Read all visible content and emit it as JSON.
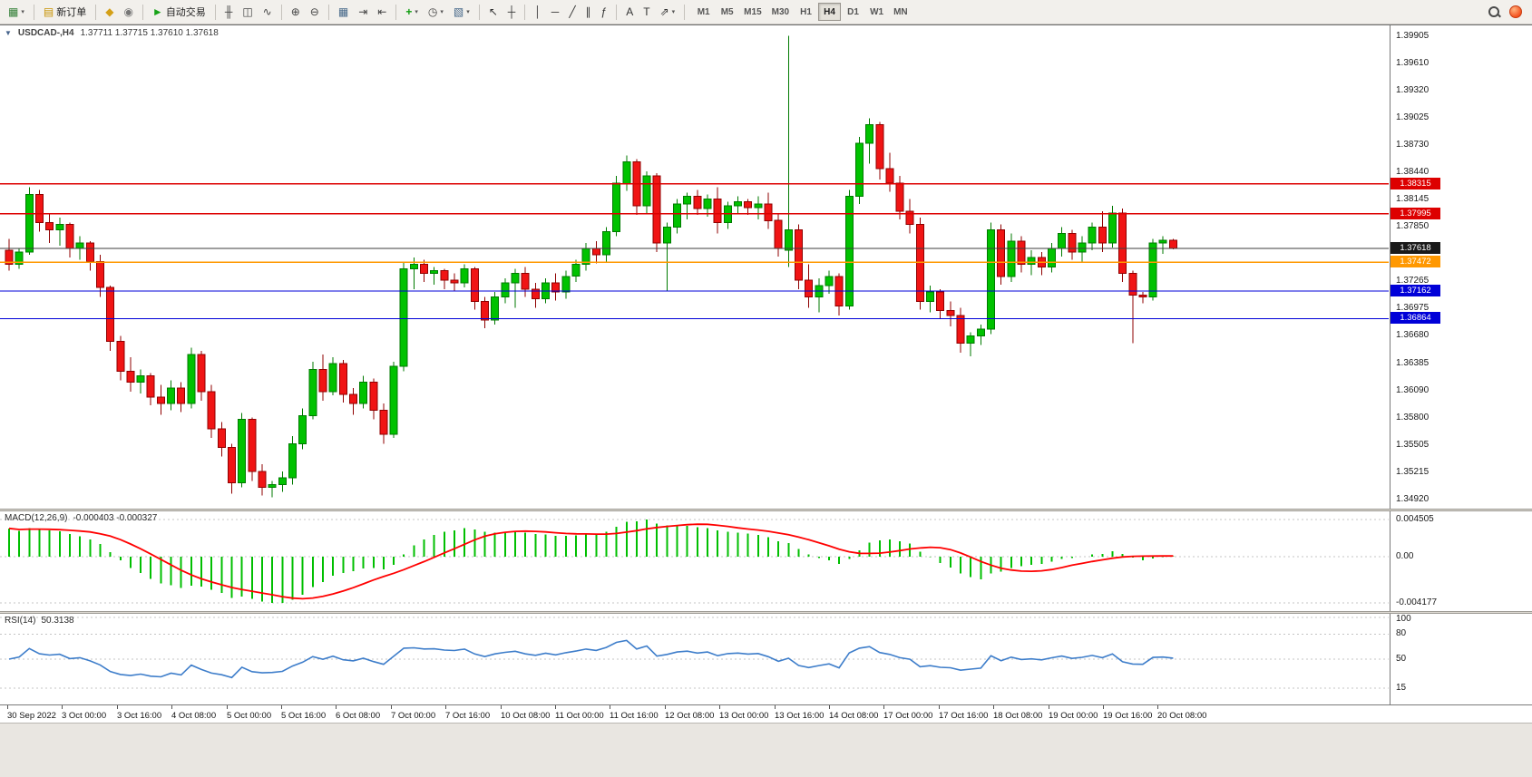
{
  "toolbar": {
    "items": [
      {
        "name": "new-chart",
        "glyph": "▦",
        "color": "#2f7d33",
        "caret": true
      },
      {
        "sep": true
      },
      {
        "name": "new-order",
        "label": "新订单",
        "glyph": "▤",
        "color": "#c79100"
      },
      {
        "sep": true
      },
      {
        "name": "metaeditor",
        "glyph": "◆",
        "color": "#d4a017"
      },
      {
        "name": "community",
        "glyph": "◉",
        "color": "#777777"
      },
      {
        "sep": true
      },
      {
        "name": "autotrading",
        "label": "自动交易",
        "glyph": "►",
        "color": "#17a317"
      },
      {
        "sep": true
      },
      {
        "name": "bars-chart",
        "glyph": "╫",
        "color": "#444444"
      },
      {
        "name": "candles-chart",
        "glyph": "◫",
        "color": "#444444"
      },
      {
        "name": "line-chart",
        "glyph": "∿",
        "color": "#444444"
      },
      {
        "sep": true
      },
      {
        "name": "zoom-in",
        "glyph": "⊕",
        "color": "#444444"
      },
      {
        "name": "zoom-out",
        "glyph": "⊖",
        "color": "#444444"
      },
      {
        "sep": true
      },
      {
        "name": "tile-windows",
        "glyph": "▦",
        "color": "#446688"
      },
      {
        "name": "auto-scroll",
        "glyph": "⇥",
        "color": "#444444"
      },
      {
        "name": "chart-shift",
        "glyph": "⇤",
        "color": "#444444"
      },
      {
        "sep": true
      },
      {
        "name": "indicators",
        "glyph": "+",
        "color": "#0f9d0f",
        "bold": true,
        "caret": true
      },
      {
        "name": "periods",
        "glyph": "◷",
        "color": "#444444",
        "caret": true
      },
      {
        "name": "templates",
        "glyph": "▧",
        "color": "#446688",
        "caret": true
      },
      {
        "sep": true
      },
      {
        "name": "cursor",
        "glyph": "↖",
        "color": "#333333"
      },
      {
        "name": "crosshair",
        "glyph": "┼",
        "color": "#333333"
      },
      {
        "sep": true
      },
      {
        "name": "vertical-line",
        "glyph": "│",
        "color": "#333333"
      },
      {
        "name": "horizontal-line",
        "glyph": "─",
        "color": "#333333"
      },
      {
        "name": "trendline",
        "glyph": "╱",
        "color": "#333333"
      },
      {
        "name": "equidistant-channel",
        "glyph": "∥",
        "color": "#333333"
      },
      {
        "name": "fibonacci",
        "glyph": "ƒ",
        "color": "#333333"
      },
      {
        "sep": true
      },
      {
        "name": "text",
        "glyph": "A",
        "color": "#333333"
      },
      {
        "name": "text-label",
        "glyph": "T",
        "color": "#333333"
      },
      {
        "name": "arrows",
        "glyph": "⇗",
        "color": "#333333",
        "caret": true
      },
      {
        "sep": true
      }
    ],
    "timeframes": [
      "M1",
      "M5",
      "M15",
      "M30",
      "H1",
      "H4",
      "D1",
      "W1",
      "MN"
    ],
    "active_timeframe": "H4"
  },
  "chart": {
    "symbol": "USDCAD-,H4",
    "ohlc": "1.37711 1.37715 1.37610 1.37618",
    "macd_title": "MACD(12,26,9)",
    "macd_values": "-0.000403 -0.000327",
    "rsi_title": "RSI(14)",
    "rsi_value": "50.3138"
  },
  "colors": {
    "bull": "#00c200",
    "bull_border": "#007a00",
    "bear": "#f01414",
    "bear_border": "#8f0000",
    "macd_hist": "#00bf00",
    "macd_signal": "#ff0000",
    "rsi_line": "#3d7dca",
    "grid": "#c4c4c4"
  },
  "chart_data": {
    "type": "candlestick",
    "symbol": "USDCAD-",
    "timeframe": "H4",
    "price_max": 1.4002,
    "price_min": 1.3482,
    "candles": [
      [
        1.376,
        1.3772,
        1.3738,
        1.3745
      ],
      [
        1.3745,
        1.3762,
        1.374,
        1.3758
      ],
      [
        1.3758,
        1.3828,
        1.3755,
        1.382
      ],
      [
        1.382,
        1.3825,
        1.378,
        1.379
      ],
      [
        1.379,
        1.38,
        1.3768,
        1.3782
      ],
      [
        1.3782,
        1.3795,
        1.3765,
        1.3788
      ],
      [
        1.3788,
        1.379,
        1.3752,
        1.3762
      ],
      [
        1.3762,
        1.3775,
        1.375,
        1.3768
      ],
      [
        1.3768,
        1.377,
        1.3738,
        1.3748
      ],
      [
        1.3748,
        1.3755,
        1.371,
        1.372
      ],
      [
        1.372,
        1.3722,
        1.3652,
        1.3662
      ],
      [
        1.3662,
        1.3668,
        1.362,
        1.363
      ],
      [
        1.363,
        1.3645,
        1.3608,
        1.3618
      ],
      [
        1.3618,
        1.3632,
        1.3606,
        1.3625
      ],
      [
        1.3625,
        1.3628,
        1.3593,
        1.3602
      ],
      [
        1.3602,
        1.3615,
        1.3583,
        1.3595
      ],
      [
        1.3595,
        1.362,
        1.3588,
        1.3612
      ],
      [
        1.3612,
        1.3618,
        1.3586,
        1.3595
      ],
      [
        1.3595,
        1.3655,
        1.359,
        1.3648
      ],
      [
        1.3648,
        1.3652,
        1.3598,
        1.3608
      ],
      [
        1.3608,
        1.3615,
        1.3558,
        1.3568
      ],
      [
        1.3568,
        1.3575,
        1.3538,
        1.3548
      ],
      [
        1.3548,
        1.3552,
        1.3498,
        1.351
      ],
      [
        1.351,
        1.3585,
        1.3505,
        1.3578
      ],
      [
        1.3578,
        1.358,
        1.3512,
        1.3522
      ],
      [
        1.3522,
        1.353,
        1.3496,
        1.3505
      ],
      [
        1.3505,
        1.3512,
        1.3494,
        1.3508
      ],
      [
        1.3508,
        1.3522,
        1.35,
        1.3515
      ],
      [
        1.3515,
        1.356,
        1.3508,
        1.3552
      ],
      [
        1.3552,
        1.359,
        1.3546,
        1.3582
      ],
      [
        1.3582,
        1.364,
        1.3578,
        1.3632
      ],
      [
        1.3632,
        1.3648,
        1.3598,
        1.3608
      ],
      [
        1.3608,
        1.3645,
        1.3604,
        1.3638
      ],
      [
        1.3638,
        1.3642,
        1.3596,
        1.3605
      ],
      [
        1.3605,
        1.3612,
        1.3583,
        1.3595
      ],
      [
        1.3595,
        1.3625,
        1.359,
        1.3618
      ],
      [
        1.3618,
        1.3622,
        1.3578,
        1.3588
      ],
      [
        1.3588,
        1.3595,
        1.3552,
        1.3562
      ],
      [
        1.3562,
        1.364,
        1.3558,
        1.3635
      ],
      [
        1.3635,
        1.3748,
        1.363,
        1.374
      ],
      [
        1.374,
        1.3752,
        1.3718,
        1.3745
      ],
      [
        1.3745,
        1.375,
        1.3726,
        1.3735
      ],
      [
        1.3735,
        1.3742,
        1.3723,
        1.3738
      ],
      [
        1.3738,
        1.374,
        1.3718,
        1.3728
      ],
      [
        1.3728,
        1.3735,
        1.3716,
        1.3725
      ],
      [
        1.3725,
        1.3745,
        1.372,
        1.374
      ],
      [
        1.374,
        1.3742,
        1.3696,
        1.3705
      ],
      [
        1.3705,
        1.371,
        1.3676,
        1.3685
      ],
      [
        1.3685,
        1.3715,
        1.368,
        1.371
      ],
      [
        1.371,
        1.373,
        1.3703,
        1.3725
      ],
      [
        1.3725,
        1.374,
        1.3698,
        1.3735
      ],
      [
        1.3735,
        1.3742,
        1.371,
        1.3718
      ],
      [
        1.3718,
        1.3725,
        1.3698,
        1.3708
      ],
      [
        1.3708,
        1.373,
        1.3703,
        1.3725
      ],
      [
        1.3725,
        1.3735,
        1.3706,
        1.3715
      ],
      [
        1.3715,
        1.3738,
        1.3708,
        1.3732
      ],
      [
        1.3732,
        1.375,
        1.3726,
        1.3745
      ],
      [
        1.3745,
        1.3768,
        1.3738,
        1.3762
      ],
      [
        1.3762,
        1.377,
        1.3746,
        1.3755
      ],
      [
        1.3755,
        1.3785,
        1.3748,
        1.378
      ],
      [
        1.378,
        1.384,
        1.3775,
        1.3832
      ],
      [
        1.3832,
        1.3862,
        1.3824,
        1.3855
      ],
      [
        1.3855,
        1.3858,
        1.3798,
        1.3808
      ],
      [
        1.3808,
        1.3845,
        1.38,
        1.384
      ],
      [
        1.384,
        1.3843,
        1.3758,
        1.3768
      ],
      [
        1.3768,
        1.379,
        1.3716,
        1.3785
      ],
      [
        1.3785,
        1.3815,
        1.3778,
        1.381
      ],
      [
        1.381,
        1.3822,
        1.3793,
        1.3818
      ],
      [
        1.3818,
        1.3825,
        1.3798,
        1.3805
      ],
      [
        1.3805,
        1.382,
        1.3796,
        1.3815
      ],
      [
        1.3815,
        1.3828,
        1.3778,
        1.379
      ],
      [
        1.379,
        1.3812,
        1.3783,
        1.3808
      ],
      [
        1.3808,
        1.3818,
        1.38,
        1.3812
      ],
      [
        1.3812,
        1.3815,
        1.3798,
        1.3806
      ],
      [
        1.3806,
        1.3818,
        1.3793,
        1.381
      ],
      [
        1.381,
        1.3822,
        1.3783,
        1.3792
      ],
      [
        1.3792,
        1.38,
        1.3753,
        1.3762
      ],
      [
        1.376,
        1.3991,
        1.3742,
        1.3782
      ],
      [
        1.3782,
        1.3788,
        1.3718,
        1.3728
      ],
      [
        1.3728,
        1.3745,
        1.3698,
        1.371
      ],
      [
        1.371,
        1.373,
        1.3693,
        1.3722
      ],
      [
        1.3722,
        1.3738,
        1.3713,
        1.3732
      ],
      [
        1.3732,
        1.3735,
        1.369,
        1.37
      ],
      [
        1.37,
        1.3825,
        1.3696,
        1.3818
      ],
      [
        1.3818,
        1.3882,
        1.381,
        1.3875
      ],
      [
        1.3875,
        1.3902,
        1.3853,
        1.3895
      ],
      [
        1.3895,
        1.3898,
        1.3836,
        1.3848
      ],
      [
        1.3848,
        1.3865,
        1.3823,
        1.3832
      ],
      [
        1.3832,
        1.384,
        1.3793,
        1.3802
      ],
      [
        1.3802,
        1.3815,
        1.3778,
        1.3788
      ],
      [
        1.3788,
        1.3795,
        1.3696,
        1.3705
      ],
      [
        1.3705,
        1.3722,
        1.3693,
        1.3715
      ],
      [
        1.3715,
        1.3718,
        1.3686,
        1.3695
      ],
      [
        1.3695,
        1.3705,
        1.3678,
        1.369
      ],
      [
        1.369,
        1.3698,
        1.365,
        1.366
      ],
      [
        1.366,
        1.3672,
        1.3646,
        1.3668
      ],
      [
        1.3668,
        1.368,
        1.3658,
        1.3675
      ],
      [
        1.3675,
        1.379,
        1.367,
        1.3782
      ],
      [
        1.3782,
        1.3788,
        1.3723,
        1.3732
      ],
      [
        1.3732,
        1.3778,
        1.3726,
        1.377
      ],
      [
        1.377,
        1.3775,
        1.3736,
        1.3745
      ],
      [
        1.3745,
        1.376,
        1.3733,
        1.3752
      ],
      [
        1.3752,
        1.3758,
        1.3733,
        1.3742
      ],
      [
        1.3742,
        1.3768,
        1.3736,
        1.3762
      ],
      [
        1.3762,
        1.3785,
        1.3753,
        1.3778
      ],
      [
        1.3778,
        1.3782,
        1.375,
        1.3758
      ],
      [
        1.3758,
        1.3775,
        1.3748,
        1.3768
      ],
      [
        1.3768,
        1.379,
        1.376,
        1.3785
      ],
      [
        1.3785,
        1.3802,
        1.3758,
        1.3768
      ],
      [
        1.3768,
        1.3808,
        1.3763,
        1.38
      ],
      [
        1.38,
        1.3805,
        1.3726,
        1.3735
      ],
      [
        1.3735,
        1.3738,
        1.366,
        1.3712
      ],
      [
        1.3712,
        1.3715,
        1.3703,
        1.371
      ],
      [
        1.371,
        1.3772,
        1.3706,
        1.3768
      ],
      [
        1.3768,
        1.3775,
        1.3756,
        1.3771
      ],
      [
        1.3771,
        1.3772,
        1.3761,
        1.3762
      ]
    ],
    "axis_labels": [
      "1.39905",
      "1.39610",
      "1.39320",
      "1.39025",
      "1.38730",
      "1.38440",
      "1.38145",
      "1.37850",
      "1.37265",
      "1.36975",
      "1.36680",
      "1.36385",
      "1.36090",
      "1.35800",
      "1.35505",
      "1.35215",
      "1.34920"
    ],
    "hlines": [
      {
        "value": 1.38315,
        "label": "1.38315",
        "color": "#dd0000"
      },
      {
        "value": 1.37995,
        "label": "1.37995",
        "color": "#dd0000"
      },
      {
        "value": 1.37472,
        "label": "1.37472",
        "color": "#ff9800"
      },
      {
        "value": 1.37162,
        "label": "1.37162",
        "color": "#0000d8"
      },
      {
        "value": 1.36864,
        "label": "1.36864",
        "color": "#0000d8"
      }
    ],
    "price_line": {
      "value": 1.37618,
      "label": "1.37618",
      "line_color": "#3c3c3c",
      "tag_bg": "#1a1a1a"
    },
    "macd": {
      "params": "12,26,9",
      "axis_labels": [
        "0.004505",
        "0.00",
        "-0.004177"
      ]
    },
    "rsi": {
      "params": "14",
      "axis_labels": [
        "100",
        "80",
        "50",
        "15"
      ],
      "axis_values": [
        100,
        80,
        50,
        15
      ],
      "levels": [
        80,
        50,
        15
      ]
    },
    "time_labels": [
      "30 Sep 2022",
      "3 Oct 00:00",
      "3 Oct 16:00",
      "4 Oct 08:00",
      "5 Oct 00:00",
      "5 Oct 16:00",
      "6 Oct 08:00",
      "7 Oct 00:00",
      "7 Oct 16:00",
      "10 Oct 08:00",
      "11 Oct 00:00",
      "11 Oct 16:00",
      "12 Oct 08:00",
      "13 Oct 00:00",
      "13 Oct 16:00",
      "14 Oct 08:00",
      "17 Oct 00:00",
      "17 Oct 16:00",
      "18 Oct 08:00",
      "19 Oct 00:00",
      "19 Oct 16:00",
      "20 Oct 08:00"
    ]
  }
}
